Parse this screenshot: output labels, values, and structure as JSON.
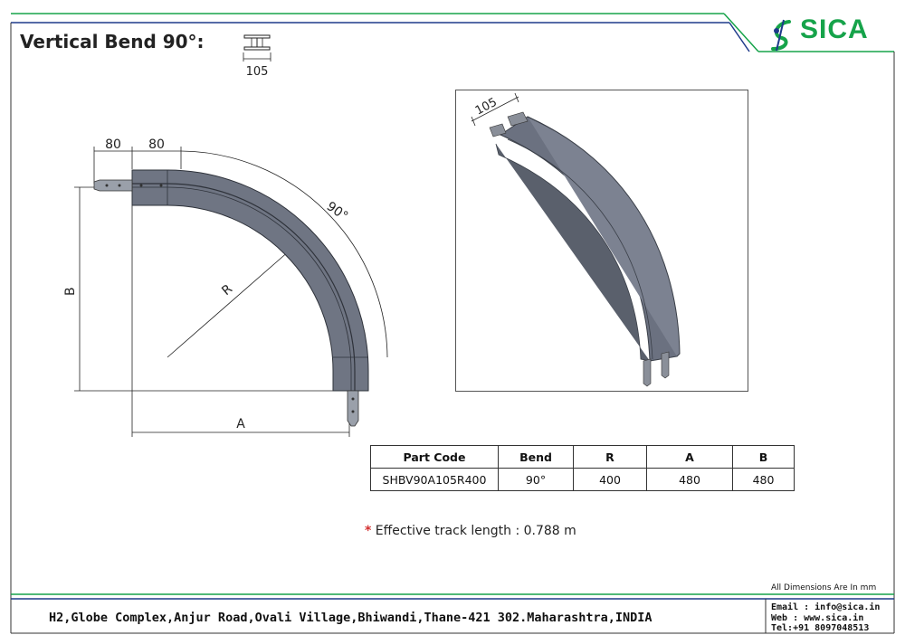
{
  "header": {
    "title": "Vertical Bend 90°:",
    "profile_width_label": "105",
    "brand": "SICA",
    "brand_primary_color": "#16a34a",
    "brand_accent_color": "#1e3a8a"
  },
  "drawing": {
    "dim_left_top": "80",
    "dim_right_top": "80",
    "angle_label": "90°",
    "radius_label": "R",
    "height_label": "B",
    "width_label": "A",
    "iso_width_label": "105"
  },
  "spec_table": {
    "headers": [
      "Part Code",
      "Bend",
      "R",
      "A",
      "B"
    ],
    "row": [
      "SHBV90A105R400",
      "90°",
      "400",
      "480",
      "480"
    ]
  },
  "note": {
    "star": "*",
    "text": "Effective track length : 0.788 m"
  },
  "footer": {
    "all_dimensions": "All Dimensions Are In mm",
    "address": "H2,Globe Complex,Anjur Road,Ovali Village,Bhiwandi,Thane-421 302.Maharashtra,INDIA",
    "email": "Email : info@sica.in",
    "web": "Web  : www.sica.in",
    "tel": "Tel:+91 8097048513"
  }
}
